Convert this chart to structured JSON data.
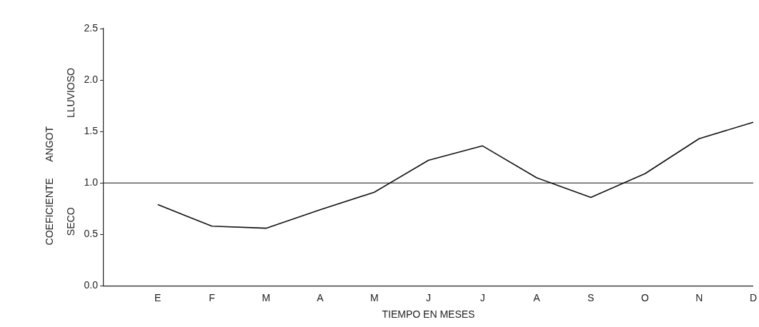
{
  "chart_data": {
    "type": "line",
    "xlabel": "TIEMPO EN MESES",
    "ylabel": "COEFICIENTE      ANGOT",
    "categories": [
      null,
      "E",
      "F",
      "M",
      "A",
      "M",
      "J",
      "J",
      "A",
      "S",
      "O",
      "N",
      "D"
    ],
    "series": [
      {
        "color": "#111111",
        "values": [
          null,
          0.79,
          0.58,
          0.56,
          0.74,
          0.91,
          1.22,
          1.36,
          1.05,
          0.86,
          1.09,
          1.43,
          1.59
        ]
      }
    ],
    "ylim": [
      0,
      2.5
    ],
    "yticks": [
      {
        "value": 0,
        "label": "0.0"
      },
      0.5,
      {
        "value": 1,
        "label": "1.0"
      },
      1.5,
      {
        "value": 2,
        "label": "2.0"
      },
      2.5
    ],
    "ref_lines": [
      {
        "axis": "y",
        "value": 1,
        "color": "#111111"
      }
    ],
    "annotations": [
      "SECO",
      "LLUVIOSO"
    ],
    "grid": false,
    "legend": false,
    "marker": "none",
    "line_style": "solid"
  }
}
